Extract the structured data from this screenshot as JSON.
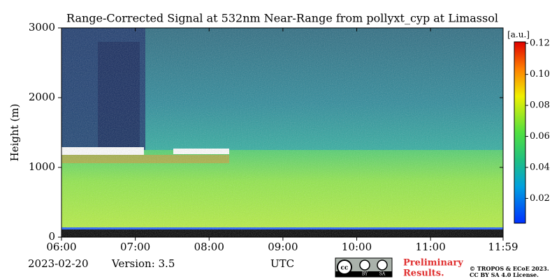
{
  "chart_data": {
    "type": "heatmap",
    "title": "Range-Corrected Signal at 532nm Near-Range from pollyxt_cyp at Limassol",
    "ylabel": "Height (m)",
    "xlabel": "UTC",
    "xlim": [
      6,
      11.983
    ],
    "xticks": [
      {
        "value": 6,
        "label": "06:00"
      },
      {
        "value": 7,
        "label": "07:00"
      },
      {
        "value": 8,
        "label": "08:00"
      },
      {
        "value": 9,
        "label": "09:00"
      },
      {
        "value": 10,
        "label": "10:00"
      },
      {
        "value": 11,
        "label": "11:00"
      },
      {
        "value": 11.983,
        "label": "11:59"
      }
    ],
    "ylim": [
      0,
      3000
    ],
    "yticks": [
      0,
      1000,
      2000,
      3000
    ],
    "colorbar": {
      "label": "[a.u.]",
      "clim": [
        0.004,
        0.121
      ],
      "ticks": [
        0.02,
        0.04,
        0.06,
        0.08,
        {
          "value": 0.1,
          "label": "0.10"
        },
        0.12
      ]
    }
  },
  "footer": {
    "date": "2023-02-20",
    "version": "Version: 3.5",
    "badge": [
      "BY",
      "SA"
    ],
    "notice": [
      "Preliminary",
      "Results."
    ],
    "copyright": [
      "© TROPOS & ECoE 2023.",
      "CC BY SA 4.0 License."
    ]
  }
}
